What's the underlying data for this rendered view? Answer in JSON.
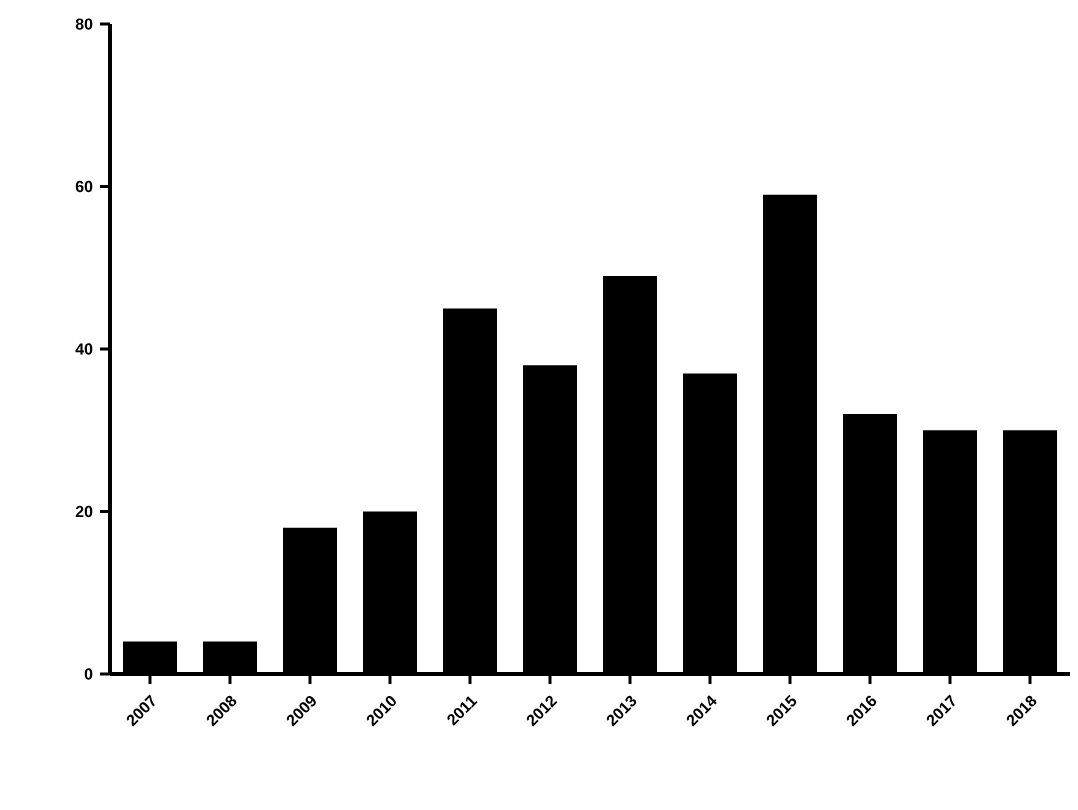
{
  "chart_data": {
    "type": "bar",
    "categories": [
      "2007",
      "2008",
      "2009",
      "2010",
      "2011",
      "2012",
      "2013",
      "2014",
      "2015",
      "2016",
      "2017",
      "2018"
    ],
    "values": [
      4,
      4,
      18,
      20,
      45,
      38,
      49,
      37,
      59,
      32,
      30,
      30
    ],
    "color": "#000000",
    "ylim": [
      0,
      80
    ],
    "yticks": [
      0,
      20,
      40,
      60,
      80
    ]
  }
}
